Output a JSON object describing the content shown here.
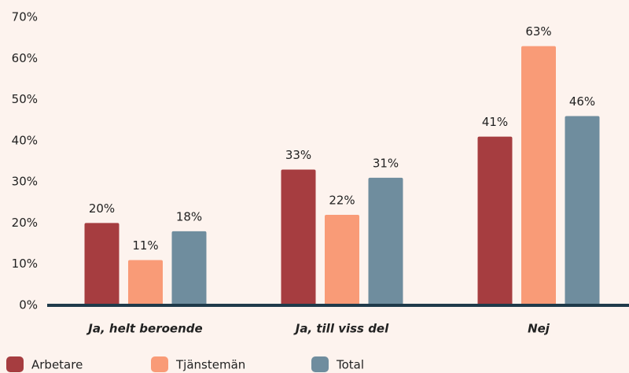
{
  "chart_data": {
    "type": "bar",
    "categories": [
      "Ja, helt beroende",
      "Ja, till viss del",
      "Nej"
    ],
    "series": [
      {
        "name": "Arbetare",
        "color": "#a63d40",
        "values": [
          20,
          33,
          41
        ],
        "value_labels": [
          "20%",
          "33%",
          "41%"
        ]
      },
      {
        "name": "Tjänstemän",
        "color": "#f99b77",
        "values": [
          11,
          22,
          63
        ],
        "value_labels": [
          "11%",
          "22%",
          "63%"
        ]
      },
      {
        "name": "Total",
        "color": "#6f8d9e",
        "values": [
          18,
          31,
          46
        ],
        "value_labels": [
          "18%",
          "31%",
          "46%"
        ]
      }
    ],
    "ylim": [
      0,
      70
    ],
    "yticks": [
      {
        "value": 0,
        "label": "0%"
      },
      {
        "value": 10,
        "label": "10%"
      },
      {
        "value": 20,
        "label": "20%"
      },
      {
        "value": 30,
        "label": "30%"
      },
      {
        "value": 40,
        "label": "40%"
      },
      {
        "value": 50,
        "label": "50%"
      },
      {
        "value": 60,
        "label": "60%"
      },
      {
        "value": 70,
        "label": "70%"
      }
    ],
    "grid": false,
    "legend": "bottom-left"
  }
}
